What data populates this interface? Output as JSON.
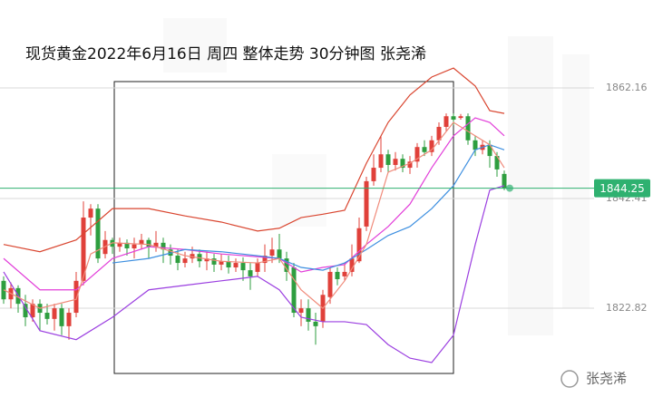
{
  "chart_data": {
    "type": "candlestick",
    "title": "现货黄金2022年6月16日 周四 整体走势 30分钟图  张尧浠",
    "ylim": [
      1805.17,
      1877.86
    ],
    "yticks": [
      1862.16,
      1842.41,
      1822.82
    ],
    "grid": true,
    "last_price": 1844.25,
    "last_price_color": "#2fb170",
    "up_color": "#e0403a",
    "down_color": "#2e9e3f",
    "candles": {
      "open": [
        1827.7,
        1824.4,
        1826.4,
        1823.6,
        1821.2,
        1823.6,
        1822.0,
        1820.9,
        1822.8,
        1819.6,
        1822.0,
        1827.7,
        1839.0,
        1840.6,
        1832.5,
        1835.0,
        1833.8,
        1834.5,
        1833.5,
        1834.2,
        1835.0,
        1833.8,
        1834.5,
        1833.3,
        1832.2,
        1830.9,
        1831.7,
        1832.5,
        1831.2,
        1831.7,
        1830.6,
        1831.2,
        1830.1,
        1830.9,
        1829.6,
        1829.3,
        1830.9,
        1832.2,
        1833.3,
        1831.7,
        1830.1,
        1822.0,
        1822.8,
        1820.4,
        1820.4,
        1824.8,
        1829.3,
        1828.5,
        1829.3,
        1831.2,
        1837.4,
        1845.5,
        1847.9,
        1850.3,
        1848.4,
        1849.5,
        1847.9,
        1849.0,
        1851.6,
        1850.7,
        1852.8,
        1855.2,
        1857.1,
        1856.8,
        1857.1,
        1852.8,
        1851.1,
        1852.0,
        1850.0,
        1846.8
      ],
      "high": [
        1828.5,
        1827.4,
        1826.9,
        1825.2,
        1824.4,
        1824.4,
        1823.6,
        1823.6,
        1823.6,
        1822.8,
        1829.3,
        1841.9,
        1841.4,
        1841.4,
        1836.6,
        1835.4,
        1835.4,
        1835.1,
        1835.4,
        1836.1,
        1835.4,
        1836.6,
        1835.4,
        1834.2,
        1833.3,
        1832.9,
        1833.8,
        1833.3,
        1832.9,
        1832.5,
        1832.5,
        1832.2,
        1831.7,
        1831.9,
        1830.9,
        1831.7,
        1834.2,
        1835.4,
        1836.1,
        1832.9,
        1830.9,
        1824.4,
        1824.4,
        1822.0,
        1826.1,
        1830.1,
        1830.1,
        1830.9,
        1834.2,
        1839.0,
        1846.3,
        1850.3,
        1853.6,
        1851.1,
        1850.7,
        1850.3,
        1850.0,
        1852.3,
        1852.8,
        1853.6,
        1856.0,
        1857.6,
        1857.6,
        1857.5,
        1857.6,
        1853.6,
        1852.8,
        1852.8,
        1850.7,
        1847.4
      ],
      "low": [
        1823.6,
        1822.8,
        1822.0,
        1819.6,
        1820.4,
        1818.8,
        1819.9,
        1818.8,
        1818.0,
        1817.2,
        1821.2,
        1826.9,
        1835.8,
        1830.9,
        1831.7,
        1832.5,
        1832.9,
        1832.2,
        1831.7,
        1833.3,
        1831.7,
        1832.9,
        1830.9,
        1830.6,
        1829.6,
        1830.1,
        1830.9,
        1830.1,
        1829.6,
        1829.3,
        1829.6,
        1829.0,
        1829.3,
        1827.7,
        1826.1,
        1828.5,
        1829.3,
        1830.9,
        1830.9,
        1827.7,
        1821.2,
        1819.6,
        1818.8,
        1816.3,
        1819.3,
        1823.6,
        1826.9,
        1827.7,
        1828.5,
        1830.9,
        1836.6,
        1844.7,
        1847.1,
        1847.1,
        1847.4,
        1847.1,
        1846.8,
        1847.9,
        1850.0,
        1850.0,
        1852.0,
        1854.4,
        1855.5,
        1856.5,
        1852.0,
        1850.0,
        1850.3,
        1847.9,
        1846.3,
        1843.9
      ],
      "close": [
        1824.4,
        1826.4,
        1823.6,
        1821.2,
        1823.6,
        1822.0,
        1820.9,
        1822.8,
        1819.6,
        1822.0,
        1827.7,
        1839.0,
        1840.6,
        1831.7,
        1835.0,
        1833.8,
        1834.5,
        1833.5,
        1834.2,
        1835.0,
        1833.8,
        1834.5,
        1833.3,
        1832.2,
        1830.9,
        1831.7,
        1832.5,
        1831.2,
        1831.7,
        1830.6,
        1831.2,
        1830.1,
        1830.9,
        1829.6,
        1828.5,
        1830.9,
        1832.2,
        1833.3,
        1831.7,
        1829.3,
        1822.0,
        1822.8,
        1820.4,
        1819.6,
        1825.2,
        1829.3,
        1828.0,
        1829.3,
        1831.7,
        1837.1,
        1845.5,
        1847.9,
        1850.3,
        1848.4,
        1849.5,
        1847.9,
        1849.0,
        1851.6,
        1850.7,
        1852.8,
        1855.2,
        1857.1,
        1856.5,
        1857.1,
        1852.8,
        1851.1,
        1852.0,
        1850.0,
        1847.6,
        1844.25
      ]
    },
    "lines": [
      {
        "color": "#d9452f",
        "x": [
          0,
          5,
          10,
          15,
          20,
          25,
          30,
          35,
          38,
          41,
          44,
          47,
          50,
          53,
          56,
          59,
          62,
          65,
          67,
          69
        ],
        "values": [
          1834.2,
          1832.9,
          1835.0,
          1840.6,
          1840.6,
          1839.3,
          1838.2,
          1836.6,
          1837.1,
          1839.0,
          1839.6,
          1840.3,
          1848.7,
          1856.0,
          1860.9,
          1864.1,
          1865.7,
          1862.5,
          1858.1,
          1857.6
        ]
      },
      {
        "color": "#e23fd9",
        "x": [
          0,
          5,
          10,
          15,
          20,
          25,
          30,
          35,
          38,
          41,
          44,
          47,
          50,
          53,
          56,
          59,
          62,
          65,
          67,
          69
        ],
        "values": [
          1831.7,
          1826.1,
          1826.1,
          1831.7,
          1833.8,
          1833.3,
          1832.5,
          1832.0,
          1831.7,
          1829.3,
          1830.1,
          1830.6,
          1834.2,
          1837.4,
          1841.4,
          1847.9,
          1853.6,
          1856.8,
          1856.0,
          1853.6
        ]
      },
      {
        "color": "#9b3fe0",
        "x": [
          0,
          5,
          10,
          15,
          20,
          25,
          30,
          35,
          38,
          41,
          44,
          47,
          50,
          53,
          56,
          59,
          62,
          65,
          67,
          69
        ],
        "values": [
          1829.3,
          1818.8,
          1817.2,
          1821.2,
          1826.1,
          1826.9,
          1827.7,
          1828.5,
          1826.1,
          1821.2,
          1820.4,
          1820.4,
          1819.9,
          1816.3,
          1813.9,
          1813.1,
          1818.0,
          1834.2,
          1843.9,
          1844.7
        ]
      },
      {
        "color": "#3d8fe0",
        "x": [
          15,
          20,
          25,
          30,
          35,
          38,
          41,
          44,
          47,
          50,
          53,
          56,
          59,
          62,
          65,
          67,
          69
        ],
        "values": [
          1830.9,
          1831.7,
          1833.3,
          1832.9,
          1832.2,
          1831.7,
          1830.1,
          1829.6,
          1830.9,
          1833.3,
          1835.8,
          1837.4,
          1840.6,
          1844.7,
          1851.1,
          1852.0,
          1851.1
        ]
      },
      {
        "color": "#f08a7a",
        "x": [
          0,
          5,
          10,
          12,
          15,
          20,
          25,
          30,
          35,
          38,
          41,
          44,
          47,
          50,
          53,
          56,
          59,
          62,
          65,
          67,
          69
        ],
        "values": [
          1826.1,
          1822.8,
          1824.4,
          1832.5,
          1834.5,
          1834.2,
          1832.2,
          1831.2,
          1830.9,
          1831.7,
          1826.1,
          1822.8,
          1827.7,
          1834.2,
          1847.1,
          1848.7,
          1851.1,
          1856.0,
          1853.6,
          1852.0,
          1847.9
        ]
      }
    ],
    "watermark": "张尧浠"
  }
}
